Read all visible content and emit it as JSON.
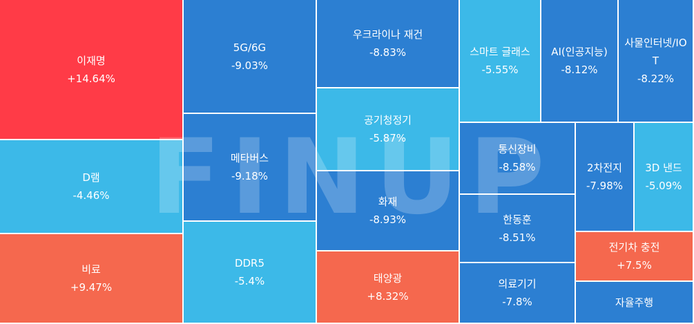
{
  "chart_data": {
    "type": "treemap",
    "items": [
      {
        "name": "이재명",
        "value": "+14.64%",
        "pct": 14.64,
        "color": "#ff3b47"
      },
      {
        "name": "D램",
        "value": "-4.46%",
        "pct": -4.46,
        "color": "#3cb9e8"
      },
      {
        "name": "비료",
        "value": "+9.47%",
        "pct": 9.47,
        "color": "#f5684e"
      },
      {
        "name": "5G/6G",
        "value": "-9.03%",
        "pct": -9.03,
        "color": "#2c7fd2"
      },
      {
        "name": "메타버스",
        "value": "-9.18%",
        "pct": -9.18,
        "color": "#2c7fd2"
      },
      {
        "name": "DDR5",
        "value": "-5.4%",
        "pct": -5.4,
        "color": "#3cb9e8"
      },
      {
        "name": "우크라이나 재건",
        "value": "-8.83%",
        "pct": -8.83,
        "color": "#2c7fd2"
      },
      {
        "name": "공기청정기",
        "value": "-5.87%",
        "pct": -5.87,
        "color": "#3cb9e8"
      },
      {
        "name": "화재",
        "value": "-8.93%",
        "pct": -8.93,
        "color": "#2c7fd2"
      },
      {
        "name": "태양광",
        "value": "+8.32%",
        "pct": 8.32,
        "color": "#f5684e"
      },
      {
        "name": "스마트 글래스",
        "value": "-5.55%",
        "pct": -5.55,
        "color": "#3cb9e8"
      },
      {
        "name": "AI(인공지능)",
        "value": "-8.12%",
        "pct": -8.12,
        "color": "#2c7fd2"
      },
      {
        "name": "사물인터넷/IOT",
        "value": "-8.22%",
        "pct": -8.22,
        "color": "#2c7fd2"
      },
      {
        "name": "통신장비",
        "value": "-8.58%",
        "pct": -8.58,
        "color": "#2c7fd2"
      },
      {
        "name": "한동훈",
        "value": "-8.51%",
        "pct": -8.51,
        "color": "#2c7fd2"
      },
      {
        "name": "의료기기",
        "value": "-7.8%",
        "pct": -7.8,
        "color": "#2c7fd2"
      },
      {
        "name": "2차전지",
        "value": "-7.98%",
        "pct": -7.98,
        "color": "#2c7fd2"
      },
      {
        "name": "3D 낸드",
        "value": "-5.09%",
        "pct": -5.09,
        "color": "#3cb9e8"
      },
      {
        "name": "전기차 충전",
        "value": "+7.5%",
        "pct": 7.5,
        "color": "#f5684e"
      },
      {
        "name": "자율주행",
        "value": "",
        "pct": null,
        "color": "#2c7fd2"
      }
    ]
  },
  "watermark": {
    "text": "FINUP"
  }
}
